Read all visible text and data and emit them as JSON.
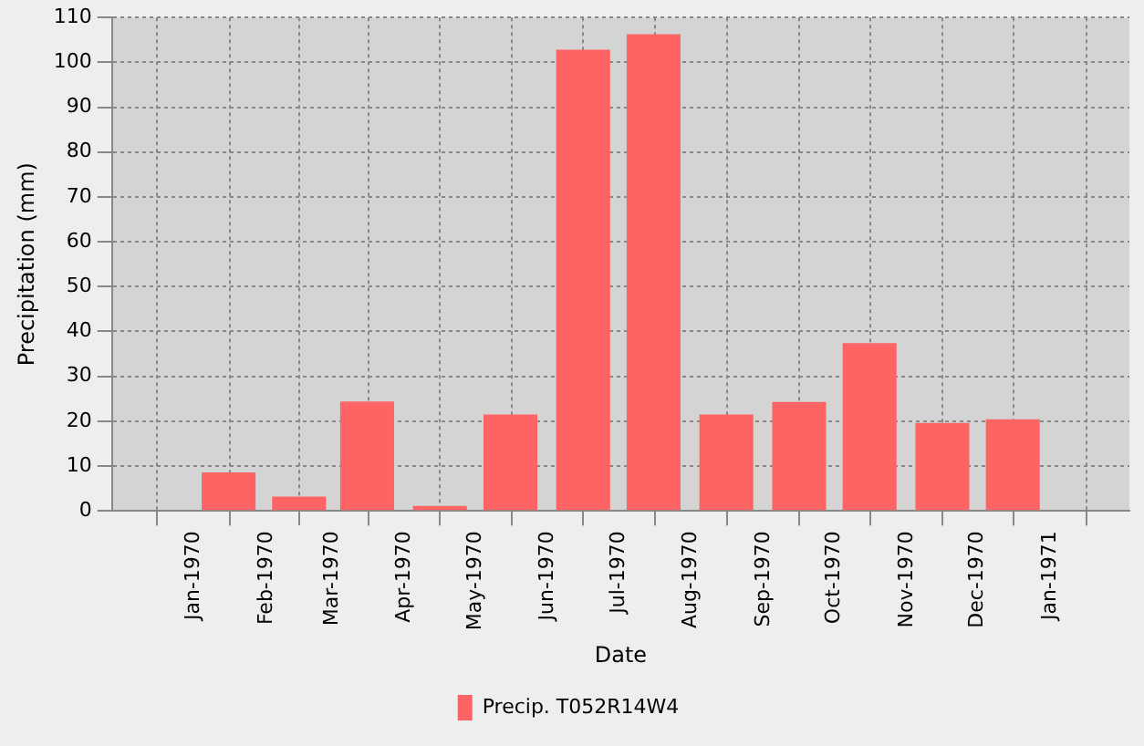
{
  "chart_data": {
    "type": "bar",
    "xlabel": "Date",
    "ylabel": "Precipitation (mm)",
    "x": [
      "1970-01-16",
      "1970-02-15",
      "1970-03-16",
      "1970-04-16",
      "1970-05-16",
      "1970-06-16",
      "1970-07-16",
      "1970-08-16",
      "1970-09-16",
      "1970-10-16",
      "1970-11-16",
      "1970-12-16"
    ],
    "series": [
      {
        "name": "Precip. T052R14W4",
        "color": "#ff6464",
        "values": [
          8.6,
          3.2,
          24.4,
          1.1,
          21.5,
          102.8,
          106.3,
          21.5,
          24.3,
          37.4,
          19.6,
          20.4
        ]
      }
    ],
    "xlim": [
      "1969-12-14",
      "1971-01-18"
    ],
    "xticks": [
      {
        "value": "1970-01",
        "label": "Jan-1970"
      },
      {
        "value": "1970-02",
        "label": "Feb-1970"
      },
      {
        "value": "1970-03",
        "label": "Mar-1970"
      },
      {
        "value": "1970-04",
        "label": "Apr-1970"
      },
      {
        "value": "1970-05",
        "label": "May-1970"
      },
      {
        "value": "1970-06",
        "label": "Jun-1970"
      },
      {
        "value": "1970-07",
        "label": "Jul-1970"
      },
      {
        "value": "1970-08",
        "label": "Aug-1970"
      },
      {
        "value": "1970-09",
        "label": "Sep-1970"
      },
      {
        "value": "1970-10",
        "label": "Oct-1970"
      },
      {
        "value": "1970-11",
        "label": "Nov-1970"
      },
      {
        "value": "1970-12",
        "label": "Dec-1970"
      },
      {
        "value": "1971-01",
        "label": "Jan-1971"
      }
    ],
    "ylim": [
      0,
      110
    ],
    "yticks": [
      0,
      10,
      20,
      30,
      40,
      50,
      60,
      70,
      80,
      90,
      100,
      110
    ],
    "grid": true,
    "legend": "bottom"
  }
}
